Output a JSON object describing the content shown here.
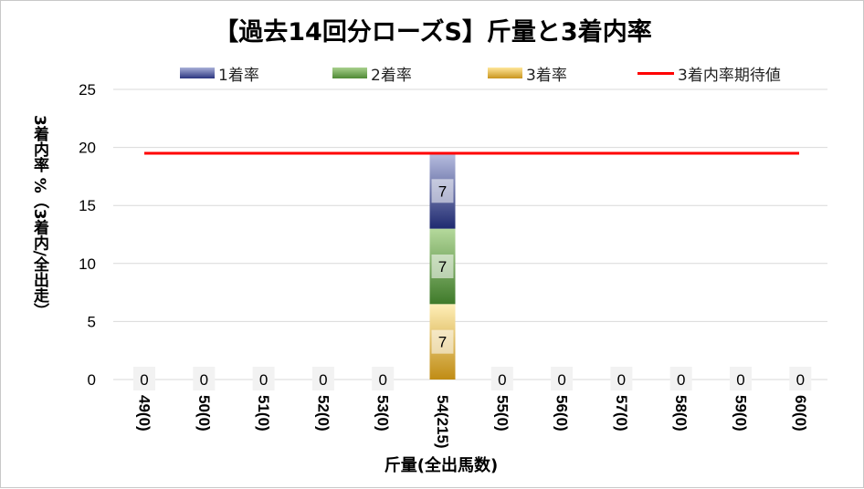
{
  "chart_data": {
    "type": "bar",
    "stacked": true,
    "title": "【過去14回分ローズS】斤量と3着内率",
    "ylabel": "3着内率 %（3着内/全出走）",
    "xlabel": "斤量(全出馬数)",
    "ylim": [
      0,
      25
    ],
    "yticks": [
      0,
      5,
      10,
      15,
      20,
      25
    ],
    "grid": true,
    "legend_position": "top",
    "categories": [
      "49(0)",
      "50(0)",
      "51(0)",
      "52(0)",
      "53(0)",
      "54(215)",
      "55(0)",
      "56(0)",
      "57(0)",
      "58(0)",
      "59(0)",
      "60(0)"
    ],
    "series": [
      {
        "name": "1着率",
        "values": [
          0,
          0,
          0,
          0,
          0,
          6.5,
          0,
          0,
          0,
          0,
          0,
          0
        ],
        "color": "#2b3580"
      },
      {
        "name": "2着率",
        "values": [
          0,
          0,
          0,
          0,
          0,
          6.5,
          0,
          0,
          0,
          0,
          0,
          0
        ],
        "color": "#4f8a35"
      },
      {
        "name": "3着率",
        "values": [
          0,
          0,
          0,
          0,
          0,
          6.5,
          0,
          0,
          0,
          0,
          0,
          0
        ],
        "color": "#c9951e"
      }
    ],
    "bar_labels": {
      "1着率": [
        "",
        "",
        "",
        "",
        "",
        "7",
        "",
        "",
        "",
        "",
        "",
        ""
      ],
      "2着率": [
        "",
        "",
        "",
        "",
        "",
        "7",
        "",
        "",
        "",
        "",
        "",
        ""
      ],
      "3着率": [
        "0",
        "0",
        "0",
        "0",
        "0",
        "7",
        "0",
        "0",
        "0",
        "0",
        "0",
        "0"
      ]
    },
    "reference_line": {
      "name": "3着内率期待値",
      "value": 19.5,
      "color": "#ff0000"
    }
  }
}
